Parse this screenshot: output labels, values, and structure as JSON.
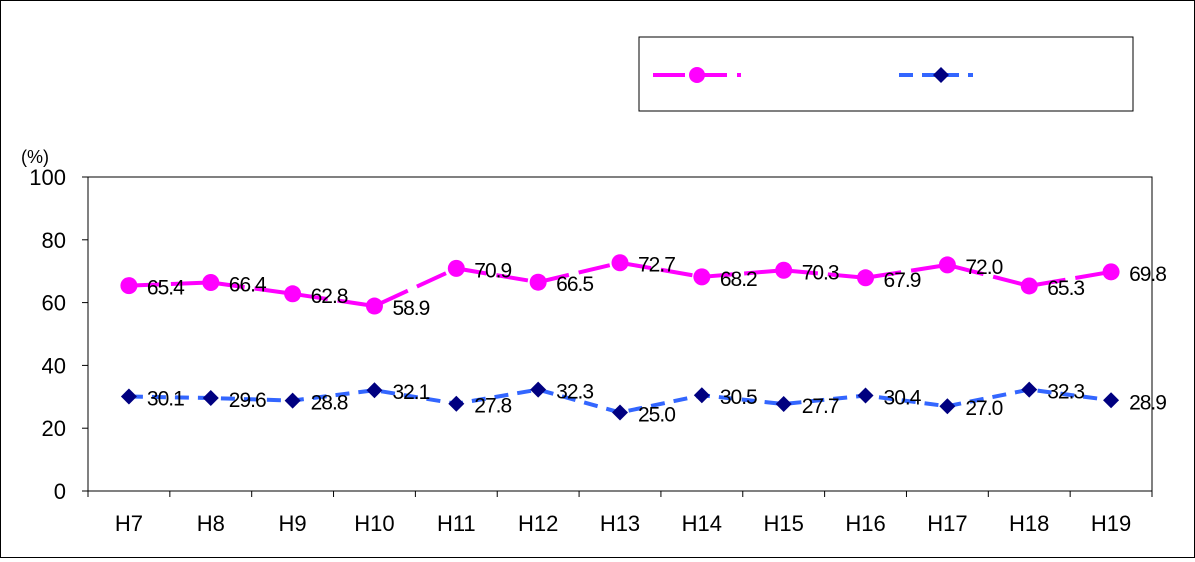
{
  "chart_data": {
    "type": "line",
    "categories": [
      "H7",
      "H8",
      "H9",
      "H10",
      "H11",
      "H12",
      "H13",
      "H14",
      "H15",
      "H16",
      "H17",
      "H18",
      "H19"
    ],
    "series": [
      {
        "values": [
          65.4,
          66.4,
          62.8,
          58.9,
          70.9,
          66.5,
          72.7,
          68.2,
          70.3,
          67.9,
          72.0,
          65.3,
          69.8
        ],
        "labels": [
          "65.4",
          "66.4",
          "62.8",
          "58.9",
          "70.9",
          "66.5",
          "72.7",
          "68.2",
          "70.3",
          "67.9",
          "72.0",
          "65.3",
          "69.8"
        ],
        "color": "#ff00ff",
        "marker": "circle",
        "line_style": "dashed-long"
      },
      {
        "values": [
          30.1,
          29.6,
          28.8,
          32.1,
          27.8,
          32.3,
          25.0,
          30.5,
          27.7,
          30.4,
          27.0,
          32.3,
          28.9
        ],
        "labels": [
          "30.1",
          "29.6",
          "28.8",
          "32.1",
          "27.8",
          "32.3",
          "25.0",
          "30.5",
          "27.7",
          "30.4",
          "27.0",
          "32.3",
          "28.9"
        ],
        "color": "#3366ff",
        "marker_color": "#000080",
        "marker": "diamond",
        "line_style": "dashed-short"
      }
    ],
    "ylabel": "(%)",
    "ylim": [
      0,
      100
    ],
    "yticks": [
      "0",
      "20",
      "40",
      "60",
      "80",
      "100"
    ],
    "grid": false,
    "legend": "top-right"
  }
}
